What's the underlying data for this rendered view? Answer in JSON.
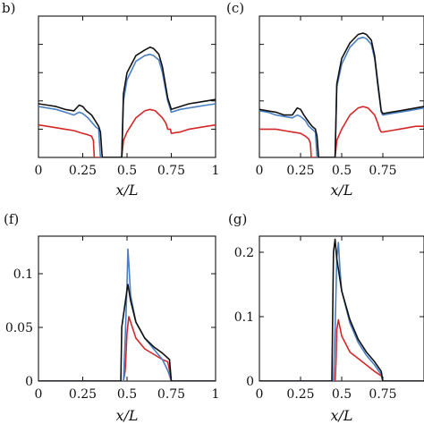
{
  "chart_data": [
    {
      "type": "line",
      "panel_label": "b)",
      "xlabel": "x/L",
      "xlim": [
        0,
        1
      ],
      "ylim": [
        0,
        1
      ],
      "xticks": [
        "0",
        "0.25",
        "0.5",
        "0.75",
        "1"
      ],
      "yticks": [],
      "ytick_values": [
        0.2,
        0.4,
        0.6,
        0.8
      ],
      "series": [
        {
          "color": "#d62728",
          "x": [
            0,
            0.05,
            0.1,
            0.15,
            0.2,
            0.25,
            0.28,
            0.3,
            0.31,
            0.315,
            0.47,
            0.48,
            0.5,
            0.55,
            0.6,
            0.63,
            0.66,
            0.7,
            0.72,
            0.73,
            0.745,
            0.75,
            0.8,
            0.85,
            0.9,
            0.95,
            1
          ],
          "y": [
            0.23,
            0.22,
            0.21,
            0.2,
            0.19,
            0.17,
            0.16,
            0.15,
            0.12,
            0,
            0,
            0.12,
            0.18,
            0.28,
            0.33,
            0.34,
            0.33,
            0.28,
            0.24,
            0.2,
            0.2,
            0.17,
            0.18,
            0.2,
            0.21,
            0.22,
            0.23
          ]
        },
        {
          "color": "#4a7fc1",
          "x": [
            0,
            0.05,
            0.1,
            0.15,
            0.2,
            0.23,
            0.25,
            0.28,
            0.3,
            0.32,
            0.34,
            0.35,
            0.47,
            0.48,
            0.5,
            0.55,
            0.6,
            0.63,
            0.65,
            0.68,
            0.7,
            0.73,
            0.75,
            0.8,
            0.85,
            0.9,
            0.95,
            1
          ],
          "y": [
            0.36,
            0.35,
            0.34,
            0.32,
            0.3,
            0.32,
            0.31,
            0.28,
            0.25,
            0.22,
            0.2,
            0,
            0,
            0.4,
            0.55,
            0.68,
            0.72,
            0.73,
            0.72,
            0.69,
            0.6,
            0.4,
            0.32,
            0.34,
            0.35,
            0.36,
            0.37,
            0.38
          ]
        },
        {
          "color": "#111111",
          "x": [
            0,
            0.05,
            0.1,
            0.15,
            0.2,
            0.23,
            0.25,
            0.27,
            0.3,
            0.32,
            0.34,
            0.35,
            0.36,
            0.47,
            0.48,
            0.5,
            0.55,
            0.6,
            0.63,
            0.65,
            0.68,
            0.7,
            0.73,
            0.75,
            0.8,
            0.85,
            0.9,
            0.95,
            1
          ],
          "y": [
            0.38,
            0.37,
            0.36,
            0.34,
            0.33,
            0.37,
            0.36,
            0.33,
            0.3,
            0.26,
            0.22,
            0.18,
            0,
            0,
            0.45,
            0.6,
            0.72,
            0.76,
            0.78,
            0.77,
            0.73,
            0.64,
            0.42,
            0.34,
            0.36,
            0.38,
            0.39,
            0.4,
            0.41
          ]
        }
      ]
    },
    {
      "type": "line",
      "panel_label": "(c)",
      "xlabel": "x/L",
      "xlim": [
        0,
        1
      ],
      "ylim": [
        0,
        1
      ],
      "xticks": [
        "0",
        "0.25",
        "0.5",
        "0.75"
      ],
      "yticks": [],
      "ytick_values": [
        0.2,
        0.4,
        0.6,
        0.8
      ],
      "series": [
        {
          "color": "#d62728",
          "x": [
            0,
            0.05,
            0.1,
            0.15,
            0.2,
            0.25,
            0.28,
            0.3,
            0.31,
            0.315,
            0.46,
            0.47,
            0.5,
            0.55,
            0.6,
            0.63,
            0.66,
            0.7,
            0.72,
            0.73,
            0.74,
            0.75,
            0.8,
            0.85,
            0.9,
            0.95,
            1
          ],
          "y": [
            0.2,
            0.2,
            0.2,
            0.19,
            0.18,
            0.17,
            0.15,
            0.13,
            0.1,
            0,
            0,
            0.12,
            0.2,
            0.3,
            0.35,
            0.36,
            0.35,
            0.3,
            0.24,
            0.2,
            0.18,
            0.18,
            0.19,
            0.2,
            0.21,
            0.22,
            0.22
          ]
        },
        {
          "color": "#4a7fc1",
          "x": [
            0,
            0.05,
            0.1,
            0.15,
            0.2,
            0.23,
            0.25,
            0.28,
            0.3,
            0.32,
            0.34,
            0.35,
            0.46,
            0.47,
            0.5,
            0.55,
            0.6,
            0.63,
            0.65,
            0.68,
            0.7,
            0.72,
            0.74,
            0.75,
            0.8,
            0.85,
            0.9,
            0.95,
            1
          ],
          "y": [
            0.33,
            0.32,
            0.3,
            0.29,
            0.28,
            0.3,
            0.29,
            0.26,
            0.22,
            0.2,
            0.18,
            0,
            0,
            0.5,
            0.66,
            0.78,
            0.84,
            0.85,
            0.84,
            0.8,
            0.7,
            0.5,
            0.32,
            0.3,
            0.31,
            0.32,
            0.33,
            0.34,
            0.35
          ]
        },
        {
          "color": "#111111",
          "x": [
            0,
            0.05,
            0.1,
            0.15,
            0.2,
            0.23,
            0.25,
            0.27,
            0.3,
            0.32,
            0.34,
            0.35,
            0.36,
            0.46,
            0.47,
            0.5,
            0.55,
            0.6,
            0.63,
            0.65,
            0.68,
            0.7,
            0.72,
            0.74,
            0.75,
            0.8,
            0.85,
            0.9,
            0.95,
            1
          ],
          "y": [
            0.34,
            0.33,
            0.32,
            0.3,
            0.3,
            0.35,
            0.34,
            0.3,
            0.25,
            0.22,
            0.2,
            0.15,
            0,
            0,
            0.52,
            0.7,
            0.81,
            0.87,
            0.88,
            0.87,
            0.83,
            0.72,
            0.52,
            0.33,
            0.31,
            0.32,
            0.33,
            0.34,
            0.35,
            0.36
          ]
        }
      ]
    },
    {
      "type": "line",
      "panel_label": "(f)",
      "xlabel": "x/L",
      "xlim": [
        0,
        1
      ],
      "ylim": [
        0,
        0.135
      ],
      "xticks": [
        "0",
        "0.25",
        "0.5",
        "0.75",
        "1"
      ],
      "yticks": [
        "0",
        "0.05",
        "0.1"
      ],
      "ytick_values": [
        0,
        0.05,
        0.1
      ],
      "series": [
        {
          "color": "#d62728",
          "x": [
            0,
            0.48,
            0.49,
            0.5,
            0.51,
            0.52,
            0.55,
            0.6,
            0.65,
            0.7,
            0.73,
            0.74,
            0.75,
            1
          ],
          "y": [
            0,
            0,
            0.01,
            0.045,
            0.06,
            0.055,
            0.04,
            0.03,
            0.025,
            0.02,
            0.018,
            0.01,
            0,
            0
          ]
        },
        {
          "color": "#4a7fc1",
          "x": [
            0,
            0.48,
            0.49,
            0.5,
            0.505,
            0.51,
            0.52,
            0.55,
            0.6,
            0.65,
            0.7,
            0.73,
            0.74,
            0.75,
            1
          ],
          "y": [
            0,
            0,
            0.04,
            0.09,
            0.123,
            0.11,
            0.08,
            0.055,
            0.04,
            0.03,
            0.02,
            0.01,
            0.005,
            0,
            0
          ]
        },
        {
          "color": "#111111",
          "x": [
            0,
            0.465,
            0.47,
            0.5,
            0.505,
            0.51,
            0.52,
            0.55,
            0.6,
            0.65,
            0.7,
            0.74,
            0.745,
            0.75,
            1
          ],
          "y": [
            0,
            0,
            0.05,
            0.085,
            0.09,
            0.085,
            0.075,
            0.055,
            0.04,
            0.032,
            0.026,
            0.02,
            0.01,
            0,
            0
          ]
        }
      ]
    },
    {
      "type": "line",
      "panel_label": "(g)",
      "xlabel": "x/L",
      "xlim": [
        0,
        1
      ],
      "ylim": [
        0,
        0.225
      ],
      "xticks": [
        "0",
        "0.25",
        "0.5",
        "0.75"
      ],
      "yticks": [
        "0",
        "0.1",
        "0.2"
      ],
      "ytick_values": [
        0,
        0.1,
        0.2
      ],
      "series": [
        {
          "color": "#d62728",
          "x": [
            0,
            0.46,
            0.465,
            0.47,
            0.48,
            0.5,
            0.55,
            0.6,
            0.65,
            0.7,
            0.74,
            0.75,
            1
          ],
          "y": [
            0,
            0,
            0.03,
            0.08,
            0.095,
            0.07,
            0.045,
            0.035,
            0.025,
            0.015,
            0.008,
            0,
            0
          ]
        },
        {
          "color": "#4a7fc1",
          "x": [
            0,
            0.45,
            0.46,
            0.47,
            0.48,
            0.49,
            0.5,
            0.55,
            0.6,
            0.65,
            0.7,
            0.74,
            0.75,
            1
          ],
          "y": [
            0,
            0,
            0.08,
            0.19,
            0.215,
            0.17,
            0.14,
            0.09,
            0.06,
            0.04,
            0.025,
            0.01,
            0,
            0
          ]
        },
        {
          "color": "#111111",
          "x": [
            0,
            0.44,
            0.445,
            0.45,
            0.46,
            0.47,
            0.5,
            0.55,
            0.6,
            0.65,
            0.7,
            0.74,
            0.75,
            1
          ],
          "y": [
            0,
            0,
            0.1,
            0.2,
            0.22,
            0.19,
            0.14,
            0.095,
            0.065,
            0.045,
            0.03,
            0.015,
            0,
            0
          ]
        }
      ]
    }
  ]
}
